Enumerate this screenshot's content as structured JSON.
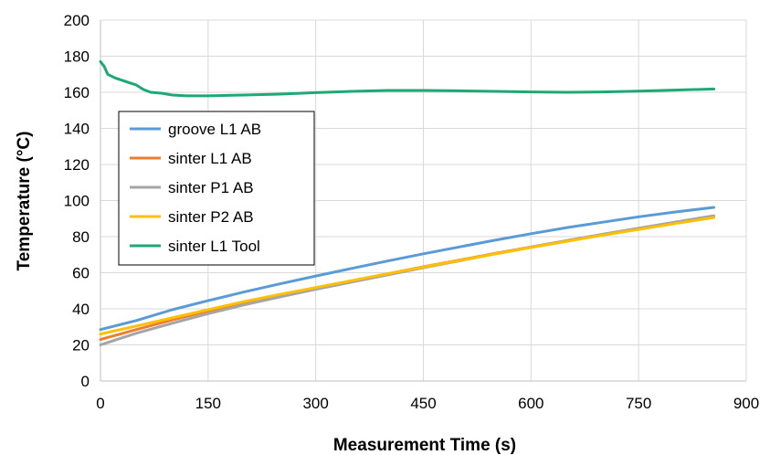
{
  "chart_data": {
    "type": "line",
    "title": "",
    "xlabel": "Measurement Time (s)",
    "ylabel": "Temperature (°C)",
    "xlim": [
      0,
      900
    ],
    "ylim": [
      0,
      200
    ],
    "xticks": [
      0,
      150,
      300,
      450,
      600,
      750,
      900
    ],
    "yticks": [
      0,
      20,
      40,
      60,
      80,
      100,
      120,
      140,
      160,
      180,
      200
    ],
    "grid": true,
    "legend_position": "left",
    "series": [
      {
        "name": "groove L1 AB",
        "color": "#5B9BD5",
        "x": [
          0,
          50,
          100,
          150,
          200,
          250,
          300,
          350,
          400,
          450,
          500,
          550,
          600,
          650,
          700,
          750,
          800,
          855
        ],
        "y": [
          28.5,
          33.5,
          39.5,
          44.5,
          49.3,
          53.8,
          58.2,
          62.4,
          66.5,
          70.5,
          74.3,
          78.0,
          81.6,
          85.0,
          88.0,
          91.0,
          93.6,
          96.2
        ]
      },
      {
        "name": "sinter L1 AB",
        "color": "#ED7D31",
        "x": [
          0,
          50,
          100,
          150,
          200,
          250,
          300,
          350,
          400,
          450,
          500,
          550,
          600,
          650,
          700,
          750,
          800,
          855
        ],
        "y": [
          23.0,
          28.5,
          33.8,
          38.8,
          43.4,
          47.6,
          51.6,
          55.5,
          59.4,
          63.3,
          67.0,
          70.7,
          74.3,
          77.8,
          81.2,
          84.5,
          87.8,
          91.2
        ]
      },
      {
        "name": "sinter P1 AB",
        "color": "#A5A5A5",
        "x": [
          0,
          50,
          100,
          150,
          200,
          250,
          300,
          350,
          400,
          450,
          500,
          550,
          600,
          650,
          700,
          750,
          800,
          855
        ],
        "y": [
          20.0,
          26.5,
          32.0,
          37.3,
          42.2,
          46.6,
          50.8,
          54.8,
          58.8,
          62.8,
          66.6,
          70.5,
          74.2,
          77.8,
          81.3,
          84.7,
          88.0,
          91.6
        ]
      },
      {
        "name": "sinter P2 AB",
        "color": "#FFC000",
        "x": [
          0,
          50,
          100,
          150,
          200,
          250,
          300,
          350,
          400,
          450,
          500,
          550,
          600,
          650,
          700,
          750,
          800,
          855
        ],
        "y": [
          26.0,
          30.5,
          35.0,
          39.5,
          44.0,
          48.0,
          51.8,
          55.6,
          59.4,
          63.1,
          66.8,
          70.4,
          74.0,
          77.4,
          80.8,
          84.0,
          87.2,
          90.6
        ]
      },
      {
        "name": "sinter L1 Tool",
        "color": "#1DA876",
        "x": [
          0,
          5,
          10,
          20,
          35,
          50,
          60,
          70,
          85,
          100,
          120,
          150,
          200,
          250,
          300,
          350,
          400,
          450,
          500,
          550,
          600,
          650,
          700,
          750,
          800,
          855
        ],
        "y": [
          177.0,
          174.5,
          170.0,
          168.0,
          166.0,
          164.0,
          161.5,
          160.0,
          159.5,
          158.5,
          158.0,
          158.0,
          158.5,
          159.0,
          159.8,
          160.5,
          161.0,
          161.0,
          160.8,
          160.5,
          160.2,
          160.0,
          160.2,
          160.6,
          161.2,
          161.8
        ]
      }
    ]
  }
}
